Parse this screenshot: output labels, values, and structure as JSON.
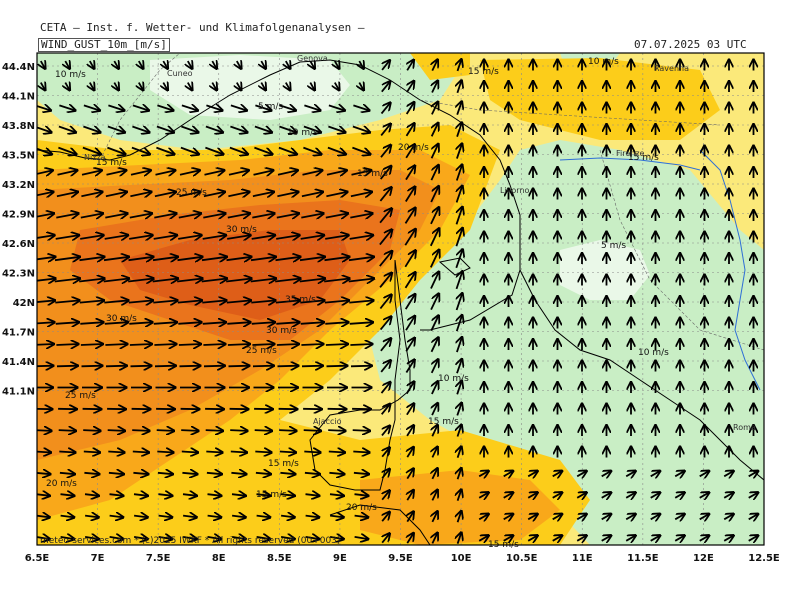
{
  "header": {
    "organization": "CETA – Inst. f. Wetter- und Klimafolgenanalysen –",
    "variable": "WIND_GUST_10m_[m/s]",
    "valid_time": "07.07.2025 03 UTC"
  },
  "footer": {
    "copyright": "meteo-services.com * (c)2025 IWKF * All rights reserved (00+003)"
  },
  "axes": {
    "longitude_labels": [
      "6.5E",
      "7E",
      "7.5E",
      "8E",
      "8.5E",
      "9E",
      "9.5E",
      "10E",
      "10.5E",
      "11E",
      "11.5E",
      "12E",
      "12.5E"
    ],
    "latitude_labels": [
      "44.4N",
      "44.1N",
      "43.8N",
      "43.5N",
      "43.2N",
      "42.9N",
      "42.6N",
      "42.3N",
      "42N",
      "41.7N",
      "41.4N",
      "41.1N"
    ]
  },
  "places": [
    "Genova",
    "Cuneo",
    "Ravenna",
    "Firenze",
    "Livorno",
    "Ajaccio",
    "Roma",
    "Nizza"
  ],
  "contour_labels": [
    "10 m/s",
    "5 m/s",
    "10 m/s",
    "15 m/s",
    "15 m/s",
    "10 m/s",
    "20 m/s",
    "15 m/s",
    "25 m/s",
    "15 m/s",
    "30 m/s",
    "5 m/s",
    "35 m/s",
    "30 m/s",
    "30 m/s",
    "25 m/s",
    "10 m/s",
    "10 m/s",
    "25 m/s",
    "15 m/s",
    "15 m/s",
    "20 m/s",
    "15 m/s",
    "20 m/s",
    "15 m/s"
  ],
  "colors": {
    "lt5": "#eaf8e8",
    "5to10": "#c9eec5",
    "10to15": "#fbe97a",
    "15to20": "#fccd1a",
    "20to25": "#f9a81a",
    "25to30": "#f28f1c",
    "30to35": "#ea741c",
    "ge35": "#de5e18",
    "arrow": "#000000",
    "coast": "#000000",
    "river": "#2f6fd6"
  }
}
